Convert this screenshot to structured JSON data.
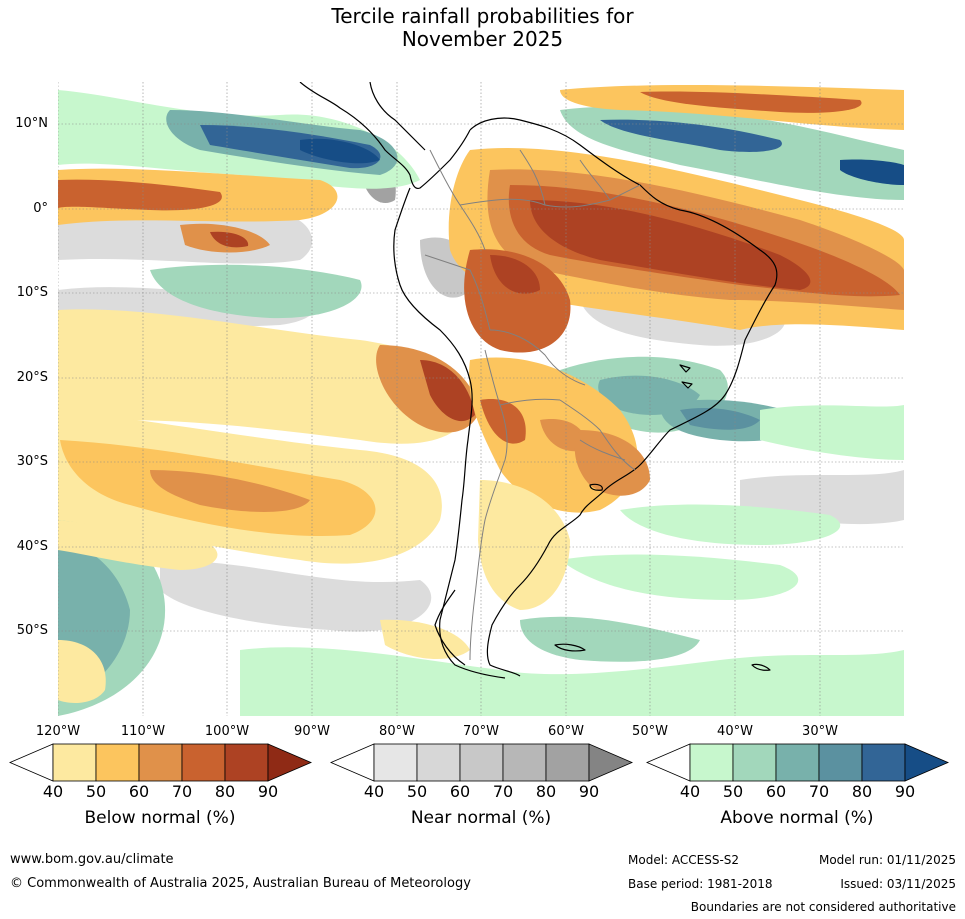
{
  "title": {
    "line1": "Tercile rainfall probabilities for",
    "line2": "November 2025"
  },
  "map": {
    "lat_labels": [
      "10°N",
      "0°",
      "10°S",
      "20°S",
      "30°S",
      "40°S",
      "50°S"
    ],
    "lon_labels": [
      "120°W",
      "110°W",
      "100°W",
      "90°W",
      "80°W",
      "70°W",
      "60°W",
      "50°W",
      "40°W",
      "30°W"
    ]
  },
  "legend": {
    "tick_labels": [
      "40",
      "50",
      "60",
      "70",
      "80",
      "90"
    ],
    "below": {
      "label": "Below normal (%)",
      "colors": [
        "#ffffff",
        "#fde9a0",
        "#fcc55e",
        "#e0914a",
        "#c9622f",
        "#ad4223",
        "#8f2a15"
      ]
    },
    "near": {
      "label": "Near normal (%)",
      "colors": [
        "#ffffff",
        "#e6e6e6",
        "#d7d7d7",
        "#c8c8c8",
        "#b7b7b7",
        "#a2a2a2",
        "#848484"
      ]
    },
    "above": {
      "label": "Above normal (%)",
      "colors": [
        "#ffffff",
        "#c7f7cd",
        "#a2d7bb",
        "#78b1ab",
        "#5b91a0",
        "#326596",
        "#164d86"
      ]
    }
  },
  "footer": {
    "website": "www.bom.gov.au/climate",
    "copyright": "© Commonwealth of Australia 2025, Australian Bureau of Meteorology",
    "model": "Model: ACCESS-S2",
    "base_period": "Base period: 1981-2018",
    "model_run": "Model run: 01/11/2025",
    "issued": "Issued: 03/11/2025",
    "disclaimer": "Boundaries are not considered authoritative"
  }
}
